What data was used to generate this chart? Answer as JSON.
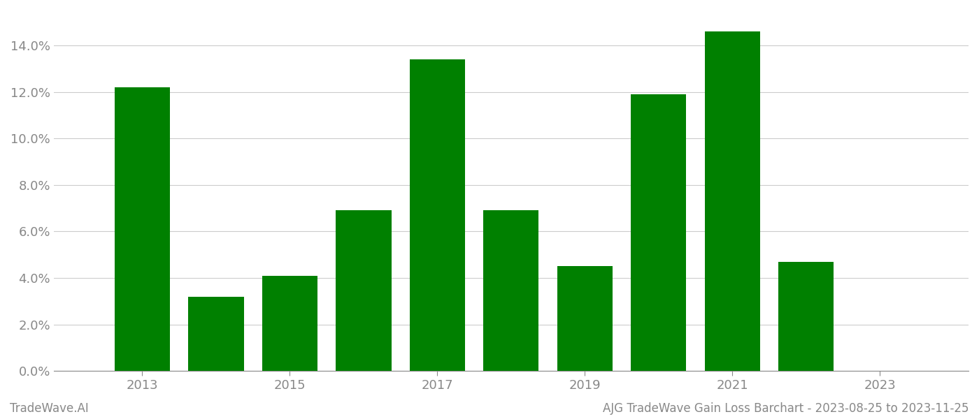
{
  "years": [
    2013,
    2014,
    2015,
    2016,
    2017,
    2018,
    2019,
    2020,
    2021,
    2022
  ],
  "values": [
    0.122,
    0.032,
    0.041,
    0.069,
    0.134,
    0.069,
    0.045,
    0.119,
    0.146,
    0.047
  ],
  "bar_color": "#008000",
  "background_color": "#ffffff",
  "grid_color": "#cccccc",
  "ylim": [
    0,
    0.155
  ],
  "yticks": [
    0.0,
    0.02,
    0.04,
    0.06,
    0.08,
    0.1,
    0.12,
    0.14
  ],
  "xticks": [
    2013,
    2015,
    2017,
    2019,
    2021,
    2023
  ],
  "xlim": [
    2011.8,
    2024.2
  ],
  "footer_left": "TradeWave.AI",
  "footer_right": "AJG TradeWave Gain Loss Barchart - 2023-08-25 to 2023-11-25",
  "tick_label_color": "#888888",
  "footer_color": "#888888",
  "bar_width": 0.75,
  "tick_fontsize": 13,
  "footer_fontsize": 12
}
